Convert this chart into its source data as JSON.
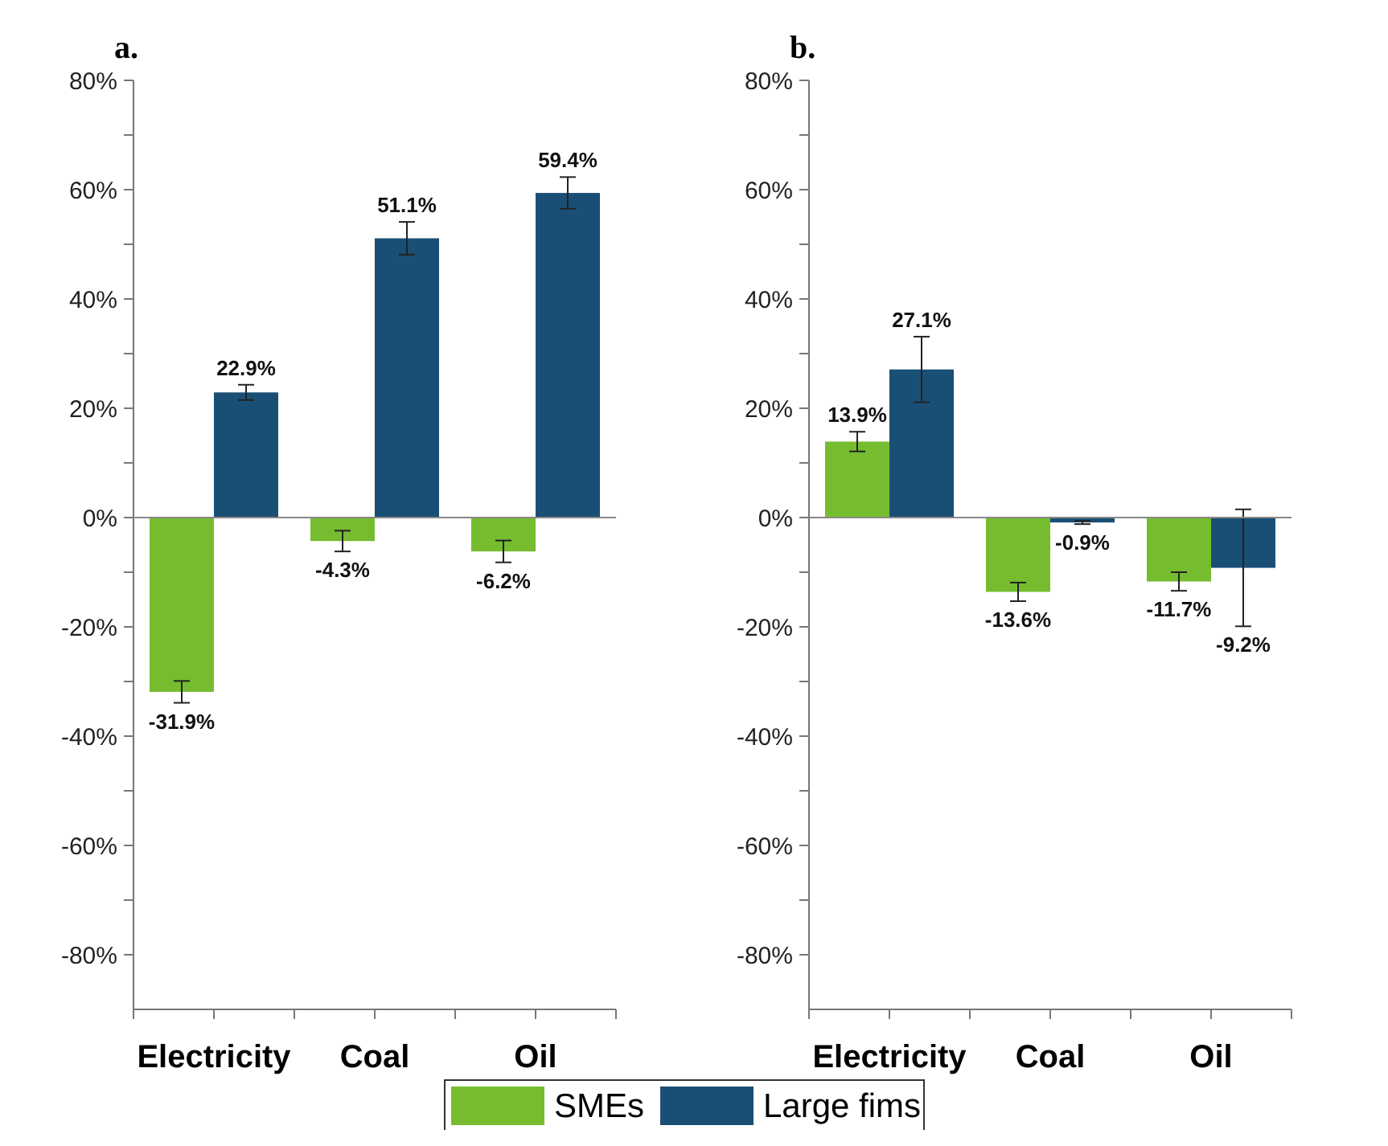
{
  "chart_data": [
    {
      "type": "bar",
      "title": "a.",
      "categories": [
        "Electricity",
        "Coal",
        "Oil"
      ],
      "ylim": [
        -90,
        80
      ],
      "yticks": [
        {
          "value": -80,
          "label": "-80%"
        },
        {
          "value": -70,
          "label": null
        },
        {
          "value": -60,
          "label": "-60%"
        },
        {
          "value": -50,
          "label": null
        },
        {
          "value": -40,
          "label": "-40%"
        },
        {
          "value": -30,
          "label": null
        },
        {
          "value": -20,
          "label": "-20%"
        },
        {
          "value": -10,
          "label": null
        },
        {
          "value": 0,
          "label": "0%"
        },
        {
          "value": 10,
          "label": null
        },
        {
          "value": 20,
          "label": "20%"
        },
        {
          "value": 30,
          "label": null
        },
        {
          "value": 40,
          "label": "40%"
        },
        {
          "value": 50,
          "label": null
        },
        {
          "value": 60,
          "label": "60%"
        },
        {
          "value": 70,
          "label": null
        },
        {
          "value": 80,
          "label": "80%"
        }
      ],
      "series": [
        {
          "name": "SMEs",
          "color": "#76bc2f",
          "values": [
            -31.9,
            -4.3,
            -6.2
          ],
          "errors": [
            2.0,
            1.9,
            2.0
          ],
          "value_labels": [
            "-31.9%",
            "-4.3%",
            "-6.2%"
          ]
        },
        {
          "name": "Large fims",
          "color": "#1a4f75",
          "values": [
            22.9,
            51.1,
            59.4
          ],
          "errors": [
            1.4,
            3.0,
            2.9
          ],
          "value_labels": [
            "22.9%",
            "51.1%",
            "59.4%"
          ]
        }
      ],
      "legend": "bottom"
    },
    {
      "type": "bar",
      "title": "b.",
      "categories": [
        "Electricity",
        "Coal",
        "Oil"
      ],
      "ylim": [
        -90,
        80
      ],
      "yticks": [
        {
          "value": -80,
          "label": "-80%"
        },
        {
          "value": -70,
          "label": null
        },
        {
          "value": -60,
          "label": "-60%"
        },
        {
          "value": -50,
          "label": null
        },
        {
          "value": -40,
          "label": "-40%"
        },
        {
          "value": -30,
          "label": null
        },
        {
          "value": -20,
          "label": "-20%"
        },
        {
          "value": -10,
          "label": null
        },
        {
          "value": 0,
          "label": "0%"
        },
        {
          "value": 10,
          "label": null
        },
        {
          "value": 20,
          "label": "20%"
        },
        {
          "value": 30,
          "label": null
        },
        {
          "value": 40,
          "label": "40%"
        },
        {
          "value": 50,
          "label": null
        },
        {
          "value": 60,
          "label": "60%"
        },
        {
          "value": 70,
          "label": null
        },
        {
          "value": 80,
          "label": "80%"
        }
      ],
      "series": [
        {
          "color": "#76bc2f",
          "values": [
            13.9,
            -13.6,
            -11.7
          ],
          "errors": [
            1.8,
            1.7,
            1.7
          ],
          "value_labels": [
            "13.9%",
            "-13.6%",
            "-11.7%"
          ]
        },
        {
          "color": "#1a4f75",
          "values": [
            27.1,
            -0.9,
            -9.2
          ],
          "errors": [
            6.0,
            0.3,
            10.7
          ],
          "value_labels": [
            "27.1%",
            "-0.9%",
            "-9.2%"
          ]
        }
      ]
    }
  ]
}
